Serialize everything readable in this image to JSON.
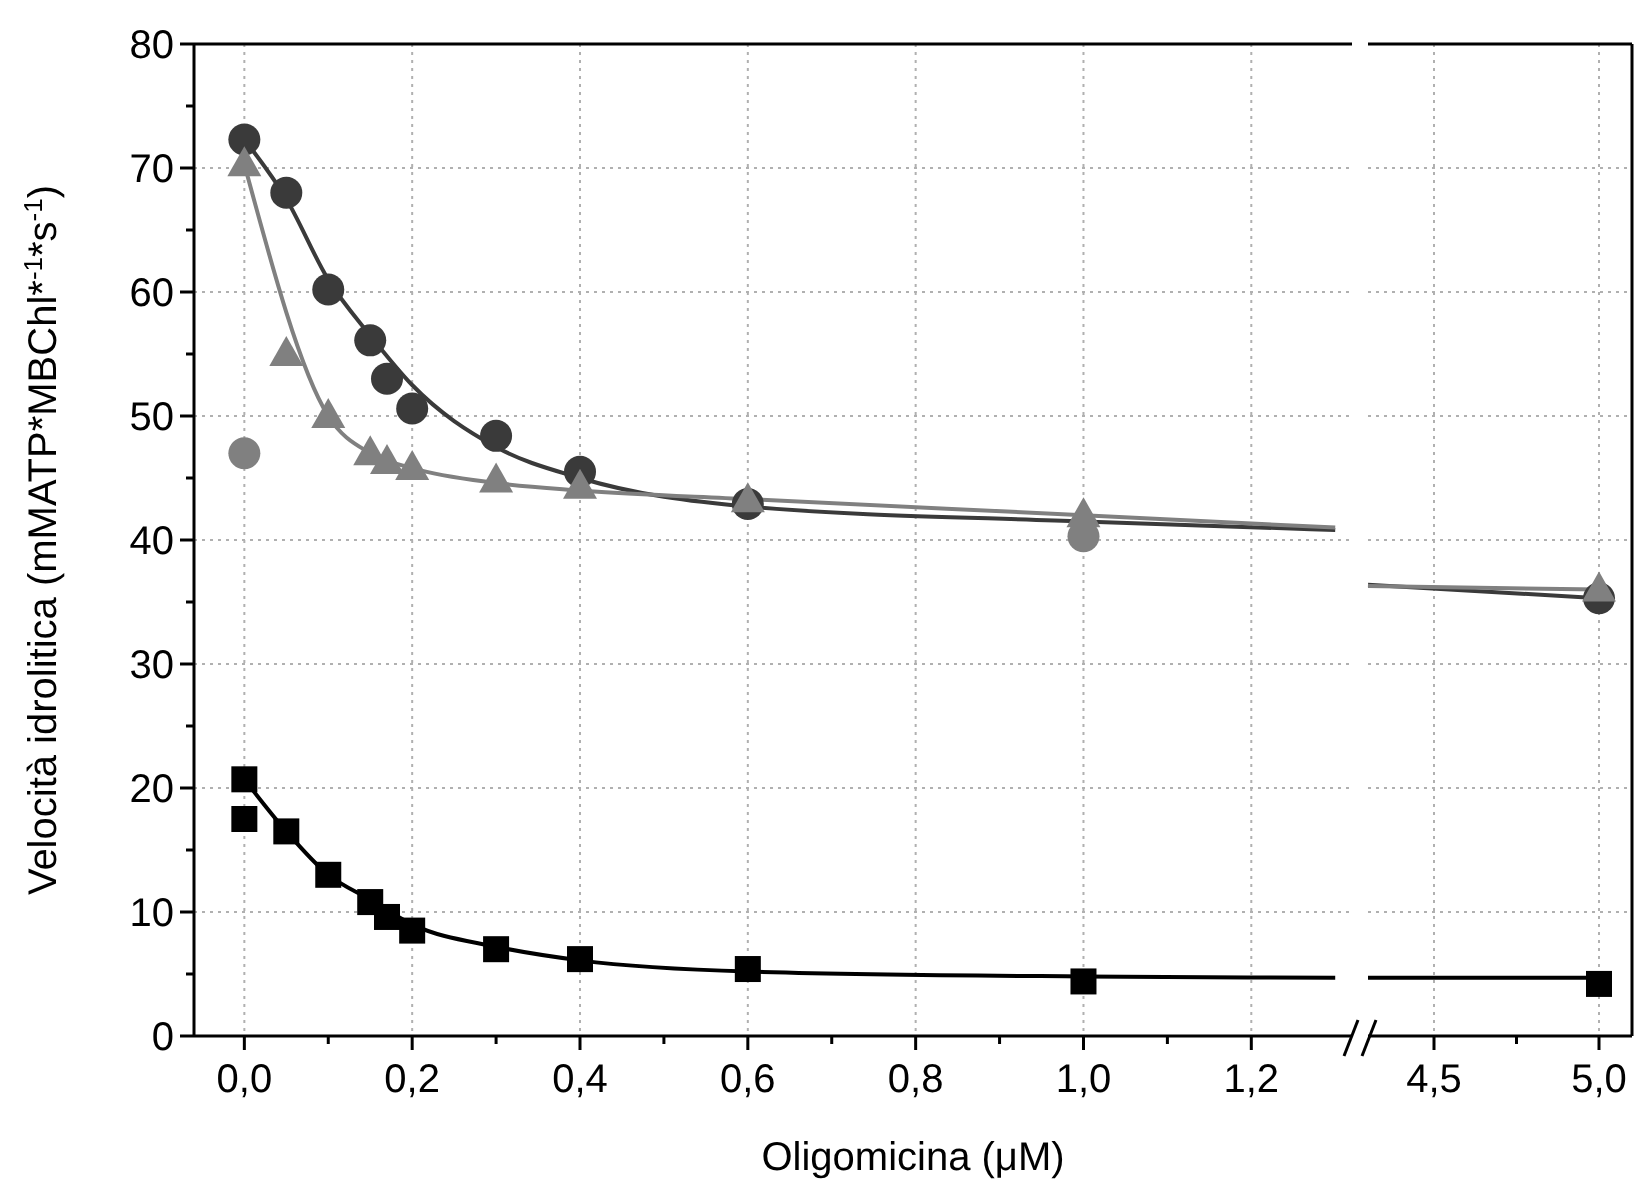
{
  "chart_data": [
    {
      "type": "scatter",
      "xlabel": "Oligomicina (μM)",
      "ylabel": "Velocità idrolitica (mMATP*MBChl*$^{-1}$*s$^{-1}$)",
      "xlim": [
        -0.06,
        1.32
      ],
      "ylim": [
        0,
        80
      ],
      "grid": true,
      "xticks": [
        {
          "value": 0,
          "label": "0,0"
        },
        {
          "value": 0.1,
          "label": null
        },
        {
          "value": 0.2,
          "label": "0,2"
        },
        {
          "value": 0.3,
          "label": null
        },
        {
          "value": 0.4,
          "label": "0,4"
        },
        {
          "value": 0.5,
          "label": null
        },
        {
          "value": 0.6,
          "label": "0,6"
        },
        {
          "value": 0.7,
          "label": null
        },
        {
          "value": 0.8,
          "label": "0,8"
        },
        {
          "value": 0.9,
          "label": null
        },
        {
          "value": 1,
          "label": "1,0"
        },
        {
          "value": 1.1,
          "label": null
        },
        {
          "value": 1.2,
          "label": "1,2"
        }
      ],
      "yticks": [
        0,
        {
          "value": 5,
          "label": null
        },
        10,
        {
          "value": 15,
          "label": null
        },
        20,
        {
          "value": 25,
          "label": null
        },
        30,
        {
          "value": 35,
          "label": null
        },
        40,
        {
          "value": 45,
          "label": null
        },
        50,
        {
          "value": 55,
          "label": null
        },
        60,
        {
          "value": 65,
          "label": null
        },
        70,
        {
          "value": 75,
          "label": null
        },
        80
      ],
      "series": [
        {
          "type": "line",
          "color": "#3a3a3a",
          "x": [
            0,
            0.05,
            0.1,
            0.15,
            0.2,
            0.3,
            0.4,
            0.6,
            1.0,
            1.3
          ],
          "values": [
            72.3,
            67.5,
            61,
            56.5,
            52.5,
            47.5,
            45,
            42.7,
            41.5,
            40.8
          ]
        },
        {
          "type": "line",
          "color": "#808080",
          "x": [
            0,
            0.1,
            0.15,
            0.2,
            0.3,
            0.4,
            0.6,
            1.0,
            1.3
          ],
          "values": [
            70.3,
            50,
            47,
            45.8,
            44.6,
            44,
            43.3,
            42,
            41
          ]
        },
        {
          "type": "line",
          "color": "#000000",
          "x": [
            0,
            0.05,
            0.1,
            0.15,
            0.2,
            0.3,
            0.4,
            0.6,
            1.0,
            1.3
          ],
          "values": [
            20.7,
            16.5,
            13,
            11,
            9,
            7.2,
            6.1,
            5.2,
            4.8,
            4.7
          ]
        },
        {
          "type": "scatter",
          "marker": "circle",
          "color": "#3a3a3a",
          "x": [
            0,
            0.05,
            0.1,
            0.15,
            0.17,
            0.2,
            0.3,
            0.4,
            0.6
          ],
          "values": [
            72.3,
            68,
            60.2,
            56.1,
            53,
            50.6,
            48.4,
            45.5,
            42.9
          ]
        },
        {
          "type": "scatter",
          "marker": "triangle",
          "color": "#808080",
          "x": [
            0,
            0.05,
            0.1,
            0.15,
            0.17,
            0.2,
            0.3,
            0.4,
            0.6,
            1.0
          ],
          "values": [
            70.3,
            55,
            50,
            47,
            46.3,
            45.8,
            44.8,
            44.3,
            43.2,
            42
          ]
        },
        {
          "type": "scatter",
          "marker": "circle",
          "color": "#808080",
          "x": [
            0,
            1.0
          ],
          "values": [
            47,
            40.3
          ]
        },
        {
          "type": "scatter",
          "marker": "square",
          "color": "#000000",
          "x": [
            0,
            0.05,
            0.1,
            0.15,
            0.17,
            0.2,
            0.3,
            0.4,
            0.6
          ],
          "values": [
            20.7,
            16.5,
            13,
            10.8,
            9.6,
            8.5,
            7,
            6.2,
            5.4
          ]
        },
        {
          "type": "scatter",
          "marker": "square",
          "color": "#000000",
          "x": [
            0,
            1.0
          ],
          "values": [
            17.5,
            4.4
          ]
        }
      ]
    },
    {
      "type": "scatter",
      "xlim": [
        4.3,
        5.1
      ],
      "ylim": [
        0,
        80
      ],
      "grid": true,
      "tick_labels": "x",
      "xticks": [
        {
          "value": 4.5,
          "label": "4,5"
        },
        {
          "value": 4.75,
          "label": null
        },
        {
          "value": 5,
          "label": "5,0"
        }
      ],
      "yticks": [
        0,
        10,
        20,
        30,
        40,
        50,
        60,
        70,
        80
      ],
      "series": [
        {
          "type": "line",
          "color": "#3a3a3a",
          "x": [
            4.3,
            5.0
          ],
          "values": [
            36.4,
            35.3
          ]
        },
        {
          "type": "line",
          "color": "#808080",
          "x": [
            4.3,
            5.0
          ],
          "values": [
            36.3,
            36
          ]
        },
        {
          "type": "line",
          "color": "#000000",
          "x": [
            4.3,
            5.0
          ],
          "values": [
            4.7,
            4.7
          ]
        },
        {
          "type": "scatter",
          "marker": "circle",
          "color": "#3a3a3a",
          "x": [
            5.0
          ],
          "values": [
            35.3
          ]
        },
        {
          "type": "scatter",
          "marker": "triangle",
          "color": "#808080",
          "x": [
            5.0
          ],
          "values": [
            36
          ]
        },
        {
          "type": "scatter",
          "marker": "square",
          "color": "#000000",
          "x": [
            5.0
          ],
          "values": [
            4.2
          ]
        }
      ]
    }
  ]
}
